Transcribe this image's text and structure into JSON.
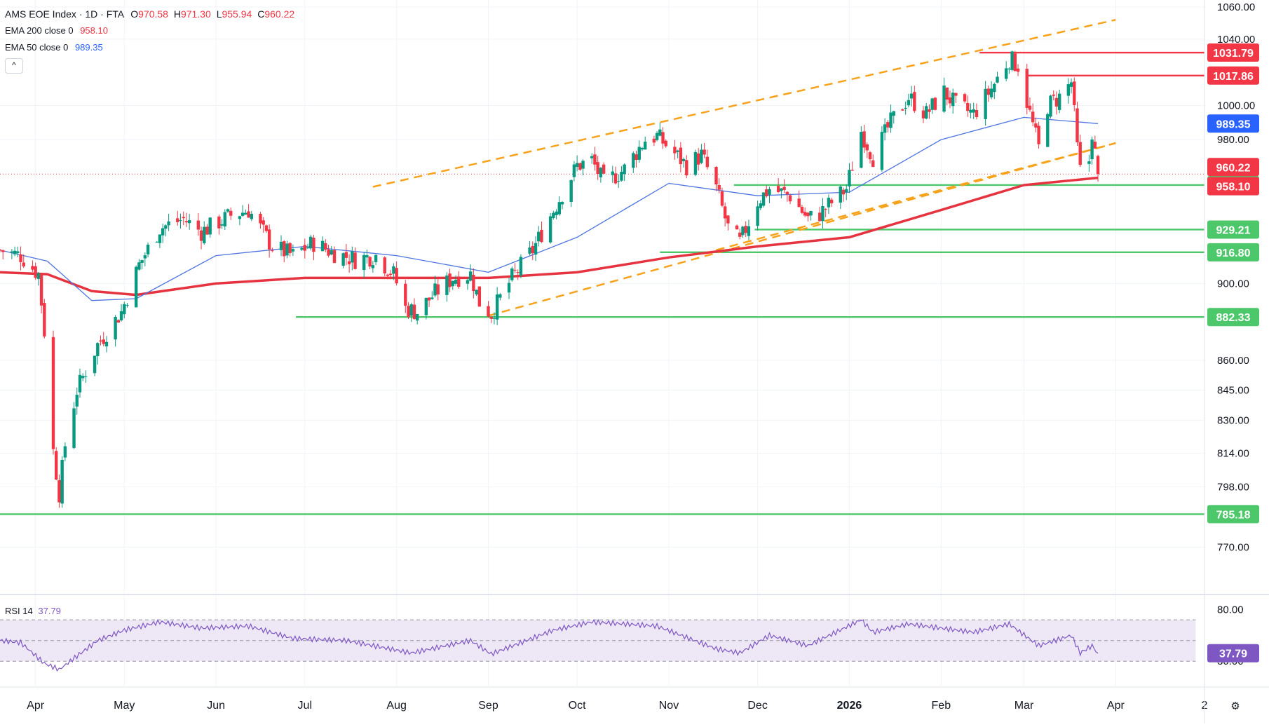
{
  "header": {
    "symbol": "AMS EOE Index · 1D · FTA",
    "o_label": "O",
    "o_value": "970.58",
    "h_label": "H",
    "h_value": "971.30",
    "l_label": "L",
    "l_value": "955.94",
    "c_label": "C",
    "c_value": "960.22",
    "ema200_label": "EMA 200 close 0",
    "ema200_value": "958.10",
    "ema50_label": "EMA 50 close 0",
    "ema50_value": "989.35",
    "collapse_glyph": "^"
  },
  "rsi_legend": {
    "label": "RSI 14",
    "value": "37.79"
  },
  "colors": {
    "up": "#089981",
    "down": "#f23645",
    "ema200": "#e53340",
    "ema50": "#4d74e0",
    "support": "#4cc76a",
    "channel": "#f7a21b",
    "rsi": "#7e57c2",
    "rsi_band": "#ede7f6",
    "grid": "#f0f3fa",
    "text": "#131722"
  },
  "chart_data": {
    "type": "candlestick",
    "x_axis": {
      "ticks": [
        {
          "label": "Apr",
          "date": "2025-04-01"
        },
        {
          "label": "May",
          "date": "2025-05-01"
        },
        {
          "label": "Jun",
          "date": "2025-06-01"
        },
        {
          "label": "Jul",
          "date": "2025-07-01"
        },
        {
          "label": "Aug",
          "date": "2025-08-01"
        },
        {
          "label": "Sep",
          "date": "2025-09-01"
        },
        {
          "label": "Oct",
          "date": "2025-10-01"
        },
        {
          "label": "Nov",
          "date": "2025-11-01"
        },
        {
          "label": "Dec",
          "date": "2025-12-01"
        },
        {
          "label": "2026",
          "date": "2026-01-01"
        },
        {
          "label": "Feb",
          "date": "2026-02-01"
        },
        {
          "label": "Mar",
          "date": "2026-03-01"
        },
        {
          "label": "Apr",
          "date": "2026-04-01"
        },
        {
          "label": "2",
          "date": "2026-05-01"
        }
      ],
      "range": [
        "2025-03-20",
        "2026-05-01"
      ]
    },
    "y_axis": {
      "scale": "log",
      "ticks": [
        "1060.00",
        "1040.00",
        "1000.00",
        "980.00",
        "900.00",
        "860.00",
        "845.00",
        "830.00",
        "814.00",
        "798.00",
        "770.00"
      ],
      "range": [
        760,
        1060
      ]
    },
    "key_points": [
      {
        "date": "2025-03-20",
        "close": 918
      },
      {
        "date": "2025-03-27",
        "close": 915
      },
      {
        "date": "2025-04-02",
        "close": 905
      },
      {
        "date": "2025-04-04",
        "close": 875
      },
      {
        "date": "2025-04-07",
        "close": 815
      },
      {
        "date": "2025-04-09",
        "close": 795
      },
      {
        "date": "2025-04-11",
        "close": 818
      },
      {
        "date": "2025-04-15",
        "close": 845
      },
      {
        "date": "2025-04-22",
        "close": 868
      },
      {
        "date": "2025-04-30",
        "close": 885
      },
      {
        "date": "2025-05-06",
        "close": 910
      },
      {
        "date": "2025-05-13",
        "close": 930
      },
      {
        "date": "2025-05-21",
        "close": 935
      },
      {
        "date": "2025-05-27",
        "close": 928
      },
      {
        "date": "2025-06-06",
        "close": 937
      },
      {
        "date": "2025-06-12",
        "close": 940
      },
      {
        "date": "2025-06-20",
        "close": 920
      },
      {
        "date": "2025-06-27",
        "close": 915
      },
      {
        "date": "2025-07-04",
        "close": 922
      },
      {
        "date": "2025-07-10",
        "close": 917
      },
      {
        "date": "2025-07-18",
        "close": 913
      },
      {
        "date": "2025-07-25",
        "close": 915
      },
      {
        "date": "2025-07-31",
        "close": 905
      },
      {
        "date": "2025-08-04",
        "close": 887
      },
      {
        "date": "2025-08-08",
        "close": 885
      },
      {
        "date": "2025-08-14",
        "close": 895
      },
      {
        "date": "2025-08-20",
        "close": 903
      },
      {
        "date": "2025-08-26",
        "close": 905
      },
      {
        "date": "2025-08-29",
        "close": 890
      },
      {
        "date": "2025-09-02",
        "close": 884
      },
      {
        "date": "2025-09-09",
        "close": 903
      },
      {
        "date": "2025-09-16",
        "close": 918
      },
      {
        "date": "2025-09-23",
        "close": 940
      },
      {
        "date": "2025-10-01",
        "close": 965
      },
      {
        "date": "2025-10-06",
        "close": 968
      },
      {
        "date": "2025-10-10",
        "close": 955
      },
      {
        "date": "2025-10-17",
        "close": 963
      },
      {
        "date": "2025-10-24",
        "close": 980
      },
      {
        "date": "2025-10-28",
        "close": 982
      },
      {
        "date": "2025-11-03",
        "close": 972
      },
      {
        "date": "2025-11-07",
        "close": 965
      },
      {
        "date": "2025-11-12",
        "close": 971
      },
      {
        "date": "2025-11-17",
        "close": 952
      },
      {
        "date": "2025-11-21",
        "close": 930
      },
      {
        "date": "2025-11-25",
        "close": 922
      },
      {
        "date": "2025-12-01",
        "close": 945
      },
      {
        "date": "2025-12-05",
        "close": 952
      },
      {
        "date": "2025-12-12",
        "close": 948
      },
      {
        "date": "2025-12-18",
        "close": 935
      },
      {
        "date": "2025-12-22",
        "close": 938
      },
      {
        "date": "2025-12-31",
        "close": 952
      },
      {
        "date": "2026-01-05",
        "close": 985
      },
      {
        "date": "2026-01-09",
        "close": 970
      },
      {
        "date": "2026-01-15",
        "close": 990
      },
      {
        "date": "2026-01-21",
        "close": 1005
      },
      {
        "date": "2026-01-27",
        "close": 995
      },
      {
        "date": "2026-02-02",
        "close": 1008
      },
      {
        "date": "2026-02-06",
        "close": 1000
      },
      {
        "date": "2026-02-12",
        "close": 995
      },
      {
        "date": "2026-02-18",
        "close": 1010
      },
      {
        "date": "2026-02-24",
        "close": 1028
      },
      {
        "date": "2026-02-27",
        "close": 1024
      },
      {
        "date": "2026-03-03",
        "close": 995
      },
      {
        "date": "2026-03-06",
        "close": 975
      },
      {
        "date": "2026-03-09",
        "close": 1000
      },
      {
        "date": "2026-03-13",
        "close": 1005
      },
      {
        "date": "2026-03-17",
        "close": 1014
      },
      {
        "date": "2026-03-19",
        "close": 975
      },
      {
        "date": "2026-03-20",
        "close": 962
      },
      {
        "date": "2026-03-23",
        "close": 968
      },
      {
        "date": "2026-03-24",
        "close": 985
      },
      {
        "date": "2026-03-25",
        "close": 972
      },
      {
        "date": "2026-03-26",
        "close": 960.22
      }
    ],
    "ema200": [
      {
        "date": "2025-03-20",
        "value": 906
      },
      {
        "date": "2025-04-05",
        "value": 905
      },
      {
        "date": "2025-04-20",
        "value": 896
      },
      {
        "date": "2025-05-05",
        "value": 894
      },
      {
        "date": "2025-06-01",
        "value": 900
      },
      {
        "date": "2025-07-01",
        "value": 903
      },
      {
        "date": "2025-08-01",
        "value": 903
      },
      {
        "date": "2025-09-01",
        "value": 903
      },
      {
        "date": "2025-10-01",
        "value": 906
      },
      {
        "date": "2025-11-01",
        "value": 914
      },
      {
        "date": "2025-12-01",
        "value": 920
      },
      {
        "date": "2026-01-01",
        "value": 925
      },
      {
        "date": "2026-02-01",
        "value": 940
      },
      {
        "date": "2026-03-01",
        "value": 954
      },
      {
        "date": "2026-03-26",
        "value": 958.1
      }
    ],
    "ema50": [
      {
        "date": "2025-03-20",
        "value": 918
      },
      {
        "date": "2025-04-05",
        "value": 912
      },
      {
        "date": "2025-04-20",
        "value": 891
      },
      {
        "date": "2025-05-05",
        "value": 892
      },
      {
        "date": "2025-06-01",
        "value": 915
      },
      {
        "date": "2025-07-01",
        "value": 920
      },
      {
        "date": "2025-08-01",
        "value": 915
      },
      {
        "date": "2025-09-01",
        "value": 906
      },
      {
        "date": "2025-10-01",
        "value": 925
      },
      {
        "date": "2025-11-01",
        "value": 955
      },
      {
        "date": "2025-12-01",
        "value": 948
      },
      {
        "date": "2026-01-01",
        "value": 950
      },
      {
        "date": "2026-02-01",
        "value": 980
      },
      {
        "date": "2026-03-01",
        "value": 993
      },
      {
        "date": "2026-03-26",
        "value": 989.35
      }
    ],
    "channel_lines": [
      {
        "from": {
          "date": "2025-07-24",
          "value": 953
        },
        "to": {
          "date": "2026-04-01",
          "value": 1052
        }
      },
      {
        "from": {
          "date": "2025-09-01",
          "value": 883
        },
        "to": {
          "date": "2026-04-01",
          "value": 978
        }
      },
      {
        "from": {
          "date": "2025-11-17",
          "value": 918
        },
        "to": {
          "date": "2026-04-01",
          "value": 978
        }
      }
    ],
    "horizontal_levels": [
      {
        "value": 1031.79,
        "label": "1031.79",
        "from": "2026-02-14",
        "kind": "resistance"
      },
      {
        "value": 1017.86,
        "label": "1017.86",
        "from": "2026-03-02",
        "kind": "resistance"
      },
      {
        "value": 954.01,
        "label": "954.01",
        "from": "2025-11-23",
        "kind": "support"
      },
      {
        "value": 929.21,
        "label": "929.21",
        "from": "2025-11-30",
        "kind": "support"
      },
      {
        "value": 916.8,
        "label": "916.80",
        "from": "2025-10-29",
        "kind": "support"
      },
      {
        "value": 882.33,
        "label": "882.33",
        "from": "2025-06-28",
        "kind": "support"
      },
      {
        "value": 785.18,
        "label": "785.18",
        "from": "2025-03-20",
        "kind": "support"
      }
    ],
    "price_badges": [
      {
        "value": 960.22,
        "label": "960.22",
        "kind": "last"
      },
      {
        "value": 958.1,
        "label": "958.10",
        "kind": "ema200"
      },
      {
        "value": 989.35,
        "label": "989.35",
        "kind": "ema50"
      }
    ],
    "last_close": 960.22,
    "rsi": {
      "period": 14,
      "upper": 70,
      "middle": 50,
      "lower": 30,
      "axis_ticks": [
        "80.00",
        "30.00"
      ],
      "range": [
        20,
        85
      ],
      "last": "37.79",
      "points": [
        {
          "date": "2025-03-20",
          "value": 50
        },
        {
          "date": "2025-03-27",
          "value": 48
        },
        {
          "date": "2025-04-04",
          "value": 28
        },
        {
          "date": "2025-04-09",
          "value": 22
        },
        {
          "date": "2025-04-15",
          "value": 35
        },
        {
          "date": "2025-04-22",
          "value": 50
        },
        {
          "date": "2025-05-01",
          "value": 60
        },
        {
          "date": "2025-05-13",
          "value": 68
        },
        {
          "date": "2025-05-27",
          "value": 62
        },
        {
          "date": "2025-06-12",
          "value": 64
        },
        {
          "date": "2025-06-27",
          "value": 52
        },
        {
          "date": "2025-07-15",
          "value": 50
        },
        {
          "date": "2025-08-06",
          "value": 38
        },
        {
          "date": "2025-08-26",
          "value": 50
        },
        {
          "date": "2025-09-02",
          "value": 37
        },
        {
          "date": "2025-09-23",
          "value": 60
        },
        {
          "date": "2025-10-06",
          "value": 68
        },
        {
          "date": "2025-10-28",
          "value": 64
        },
        {
          "date": "2025-11-17",
          "value": 42
        },
        {
          "date": "2025-11-25",
          "value": 38
        },
        {
          "date": "2025-12-05",
          "value": 55
        },
        {
          "date": "2025-12-18",
          "value": 45
        },
        {
          "date": "2026-01-05",
          "value": 70
        },
        {
          "date": "2026-01-09",
          "value": 58
        },
        {
          "date": "2026-01-21",
          "value": 66
        },
        {
          "date": "2026-02-12",
          "value": 58
        },
        {
          "date": "2026-02-24",
          "value": 66
        },
        {
          "date": "2026-03-06",
          "value": 45
        },
        {
          "date": "2026-03-17",
          "value": 55
        },
        {
          "date": "2026-03-20",
          "value": 38
        },
        {
          "date": "2026-03-24",
          "value": 45
        },
        {
          "date": "2026-03-26",
          "value": 37.79
        }
      ]
    }
  }
}
